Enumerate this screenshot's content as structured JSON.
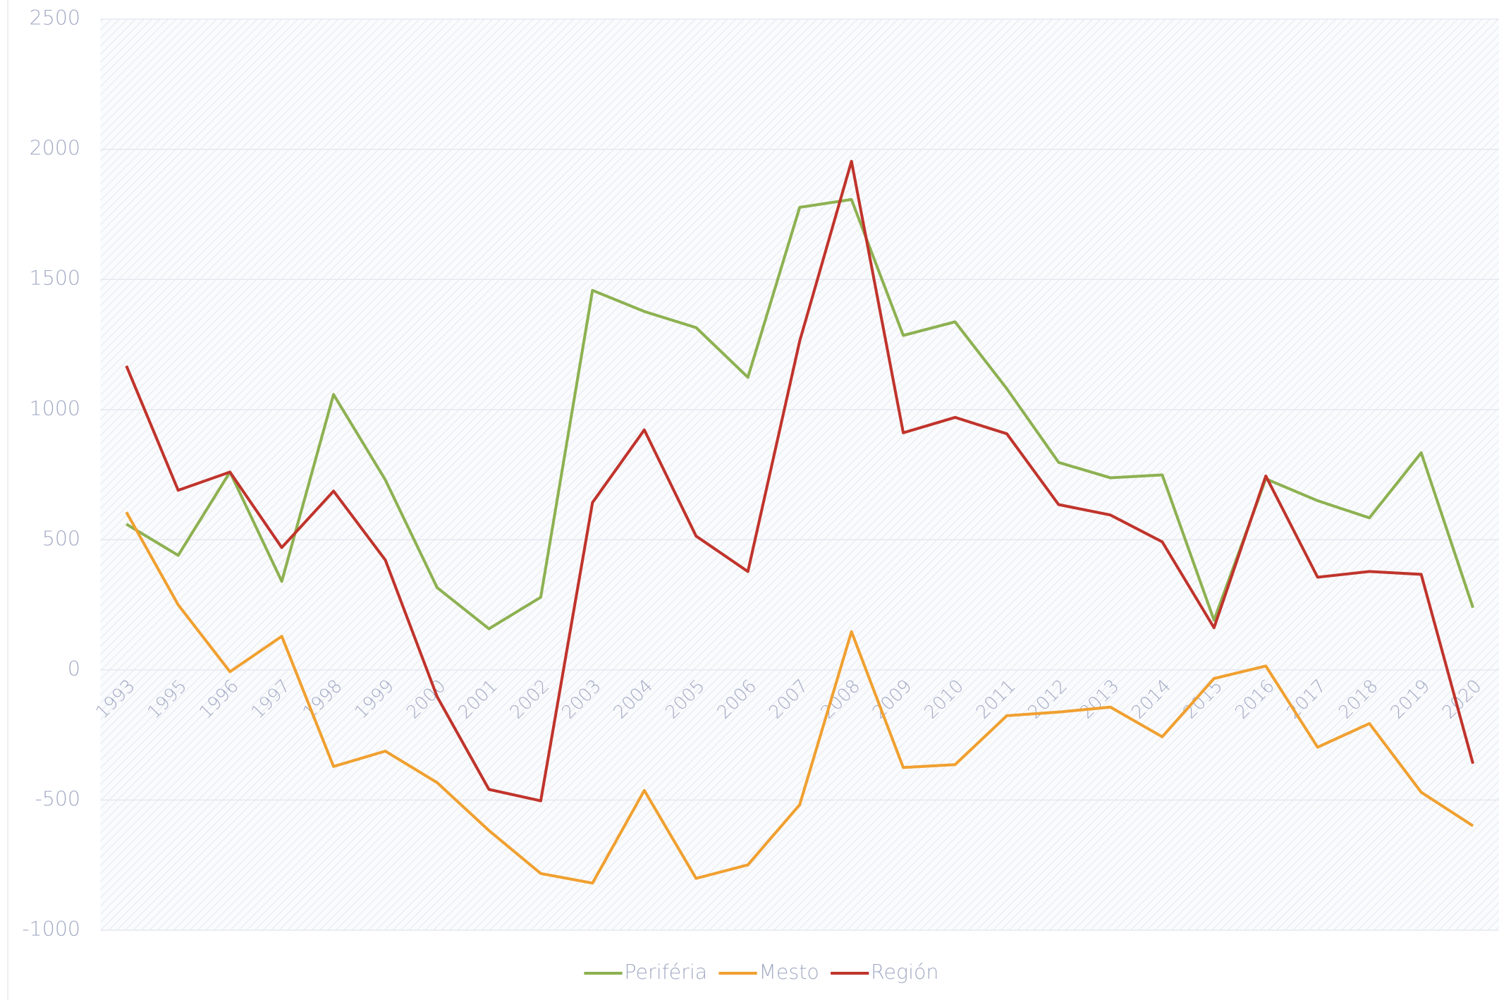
{
  "chart_data": {
    "type": "line",
    "categories": [
      "1993",
      "1995",
      "1996",
      "1997",
      "1998",
      "1999",
      "2000",
      "2001",
      "2002",
      "2003",
      "2004",
      "2005",
      "2006",
      "2007",
      "2008",
      "2009",
      "2010",
      "2011",
      "2012",
      "2013",
      "2014",
      "2015",
      "2016",
      "2017",
      "2018",
      "2019",
      "2020"
    ],
    "series": [
      {
        "name": "Periféria",
        "color": "#8db151",
        "values": [
          560,
          440,
          760,
          340,
          1058,
          730,
          316,
          158,
          279,
          1458,
          1377,
          1315,
          1124,
          1777,
          1807,
          1285,
          1337,
          1080,
          797,
          738,
          749,
          191,
          734,
          650,
          584,
          834,
          239
        ]
      },
      {
        "name": "Mesto",
        "color": "#f0a030",
        "values": [
          606,
          250,
          -7,
          129,
          -371,
          -312,
          -433,
          -617,
          -782,
          -819,
          -463,
          -801,
          -749,
          -518,
          147,
          -375,
          -364,
          -176,
          -162,
          -143,
          -257,
          -33,
          15,
          -297,
          -206,
          -470,
          -599
        ]
      },
      {
        "name": "Región",
        "color": "#c0342c",
        "values": [
          1168,
          690,
          760,
          470,
          687,
          422,
          -103,
          -459,
          -503,
          643,
          922,
          514,
          378,
          1263,
          1954,
          911,
          970,
          907,
          635,
          595,
          492,
          162,
          745,
          356,
          378,
          367,
          -360
        ]
      }
    ],
    "ylim": [
      -1000,
      2500
    ],
    "yticks": [
      -1000,
      -500,
      0,
      500,
      1000,
      1500,
      2000,
      2500
    ],
    "grid": true,
    "legend": "bottom"
  }
}
